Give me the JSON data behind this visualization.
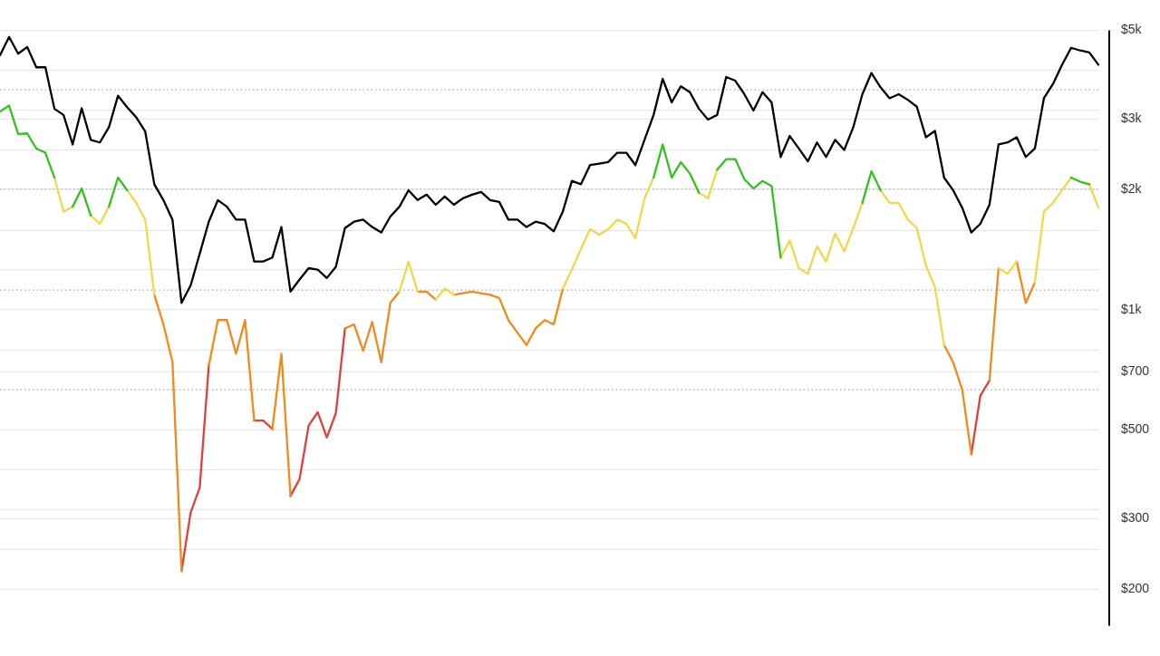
{
  "chart_data": {
    "type": "line",
    "categories": [
      null,
      null,
      null,
      null,
      null,
      null,
      null,
      null,
      null,
      null,
      null,
      null,
      null,
      null,
      null,
      null,
      null,
      null,
      null,
      null,
      null,
      null,
      null,
      null,
      null,
      null,
      null,
      null,
      null,
      null,
      null,
      null,
      null,
      null,
      null,
      null,
      null,
      null,
      null,
      null,
      null,
      null,
      null,
      null,
      null,
      null,
      null,
      null,
      null,
      null,
      null,
      null,
      null,
      null,
      null,
      null,
      null,
      null,
      null,
      null,
      null,
      null,
      null,
      null,
      null,
      null,
      null,
      null,
      null,
      null,
      null,
      null,
      null,
      null,
      null,
      null,
      null,
      null,
      null,
      null,
      null,
      null,
      null,
      null,
      null,
      null,
      null,
      null,
      null,
      null,
      null,
      null,
      null,
      null,
      null,
      null,
      null,
      null,
      null,
      null,
      null,
      null,
      null,
      null,
      null,
      null,
      null,
      null,
      null,
      null,
      null,
      null,
      null,
      null,
      null,
      null,
      null,
      null,
      null,
      null,
      null,
      null
    ],
    "series": [
      {
        "color": "#000000",
        "values": [
          4330,
          4810,
          4370,
          4540,
          4040,
          4040,
          3180,
          3070,
          2590,
          3190,
          2660,
          2620,
          2860,
          3430,
          3210,
          3030,
          2790,
          2060,
          1880,
          1680,
          1040,
          1150,
          1380,
          1660,
          1880,
          1810,
          1680,
          1680,
          1320,
          1320,
          1350,
          1610,
          1110,
          1190,
          1270,
          1260,
          1200,
          1280,
          1600,
          1660,
          1680,
          1610,
          1560,
          1710,
          1810,
          1990,
          1880,
          1940,
          1830,
          1920,
          1830,
          1900,
          1940,
          1970,
          1880,
          1860,
          1680,
          1680,
          1610,
          1660,
          1640,
          1570,
          1760,
          2100,
          2060,
          2300,
          2320,
          2340,
          2470,
          2470,
          2300,
          2660,
          3070,
          3780,
          3300,
          3620,
          3500,
          3180,
          2990,
          3070,
          3820,
          3740,
          3460,
          3150,
          3500,
          3300,
          2410,
          2720,
          2530,
          2350,
          2620,
          2410,
          2660,
          2510,
          2860,
          3460,
          3910,
          3600,
          3380,
          3460,
          3350,
          3220,
          2700,
          2800,
          2140,
          1990,
          1800,
          1560,
          1640,
          1830,
          2590,
          2620,
          2700,
          2410,
          2530,
          3380,
          3670,
          4100,
          4520,
          4450,
          4400,
          4100
        ]
      },
      {
        "color": "#33c11f",
        "values": [
          3130,
          3240,
          2750,
          2760,
          2530,
          2470,
          2140,
          null,
          1810,
          2010,
          1720,
          null,
          1810,
          2140,
          1990,
          null,
          null,
          null,
          null,
          null,
          null,
          null,
          null,
          null,
          null,
          null,
          null,
          null,
          null,
          null,
          null,
          null,
          null,
          null,
          null,
          null,
          null,
          null,
          null,
          null,
          null,
          null,
          null,
          null,
          null,
          null,
          null,
          null,
          null,
          null,
          null,
          null,
          null,
          null,
          null,
          null,
          null,
          null,
          null,
          null,
          null,
          null,
          null,
          null,
          null,
          null,
          null,
          null,
          null,
          null,
          null,
          null,
          2140,
          2590,
          2140,
          2340,
          2190,
          1960,
          null,
          2240,
          2380,
          2380,
          2120,
          2010,
          2100,
          2040,
          1350,
          null,
          null,
          null,
          null,
          null,
          null,
          null,
          null,
          1850,
          2220,
          1990,
          null,
          null,
          null,
          null,
          null,
          null,
          null,
          null,
          null,
          null,
          null,
          null,
          null,
          null,
          null,
          null,
          null,
          null,
          null,
          null,
          2140,
          2090,
          2060,
          null
        ]
      },
      {
        "color": "#f0d848",
        "values": [
          null,
          null,
          null,
          null,
          null,
          null,
          2140,
          1760,
          1810,
          null,
          1720,
          1640,
          1810,
          null,
          1990,
          1850,
          1680,
          1090,
          null,
          null,
          null,
          null,
          null,
          null,
          null,
          null,
          null,
          null,
          null,
          null,
          null,
          null,
          null,
          null,
          null,
          null,
          null,
          null,
          null,
          null,
          null,
          null,
          null,
          null,
          1110,
          1320,
          1110,
          null,
          1060,
          1130,
          1090,
          null,
          null,
          null,
          null,
          null,
          null,
          null,
          null,
          null,
          null,
          null,
          1130,
          1260,
          1420,
          1590,
          1540,
          1590,
          1680,
          1640,
          1510,
          1900,
          2140,
          null,
          null,
          null,
          null,
          1960,
          1900,
          2240,
          null,
          null,
          null,
          null,
          null,
          null,
          1350,
          1490,
          1270,
          1230,
          1440,
          1320,
          1550,
          1400,
          1600,
          1850,
          null,
          1990,
          1850,
          1850,
          1680,
          1600,
          1290,
          1140,
          816,
          null,
          null,
          null,
          null,
          null,
          1270,
          1230,
          1320,
          null,
          1170,
          1760,
          1850,
          1990,
          2140,
          null,
          2060,
          1800
        ]
      },
      {
        "color": "#f08a1c",
        "values": [
          null,
          null,
          null,
          null,
          null,
          null,
          null,
          null,
          null,
          null,
          null,
          null,
          null,
          null,
          null,
          null,
          null,
          1090,
          919,
          740,
          222,
          null,
          null,
          725,
          942,
          942,
          776,
          942,
          528,
          null,
          503,
          776,
          342,
          null,
          null,
          null,
          null,
          null,
          898,
          919,
          789,
          932,
          739,
          1040,
          1110,
          null,
          1110,
          1110,
          1060,
          null,
          1090,
          1100,
          1110,
          1100,
          1090,
          1070,
          942,
          876,
          816,
          898,
          942,
          919,
          1130,
          null,
          null,
          null,
          null,
          null,
          null,
          null,
          null,
          null,
          null,
          null,
          null,
          null,
          null,
          null,
          null,
          null,
          null,
          null,
          null,
          null,
          null,
          null,
          null,
          null,
          null,
          null,
          null,
          null,
          null,
          null,
          null,
          null,
          null,
          null,
          null,
          null,
          null,
          null,
          null,
          null,
          816,
          739,
          631,
          435,
          null,
          665,
          1270,
          null,
          1320,
          1040,
          1170,
          null,
          null,
          null,
          null,
          null,
          null,
          null
        ]
      },
      {
        "color": "#e0403c",
        "values": [
          null,
          null,
          null,
          null,
          null,
          null,
          null,
          null,
          null,
          null,
          null,
          null,
          null,
          null,
          null,
          null,
          null,
          null,
          null,
          null,
          222,
          311,
          359,
          725,
          null,
          null,
          null,
          null,
          528,
          528,
          503,
          null,
          342,
          377,
          513,
          554,
          479,
          551,
          898,
          null,
          null,
          null,
          null,
          null,
          null,
          null,
          null,
          null,
          null,
          null,
          null,
          null,
          null,
          null,
          null,
          null,
          null,
          null,
          null,
          null,
          null,
          null,
          null,
          null,
          null,
          null,
          null,
          null,
          null,
          null,
          null,
          null,
          null,
          null,
          null,
          null,
          null,
          null,
          null,
          null,
          null,
          null,
          null,
          null,
          null,
          null,
          null,
          null,
          null,
          null,
          null,
          null,
          null,
          null,
          null,
          null,
          null,
          null,
          null,
          null,
          null,
          null,
          null,
          null,
          null,
          null,
          null,
          435,
          610,
          665,
          null,
          null,
          null,
          null,
          null,
          null,
          null,
          null,
          null,
          null,
          null,
          null
        ]
      }
    ],
    "log": true,
    "ylim": [
      162,
      5000
    ],
    "yticks": [
      {
        "value": 200,
        "label": "$200"
      },
      {
        "value": 251,
        "label": null
      },
      {
        "value": 300,
        "label": "$300"
      },
      {
        "value": 316,
        "label": null
      },
      {
        "value": 398,
        "label": null
      },
      {
        "value": 500,
        "label": "$500"
      },
      {
        "value": 700,
        "label": "$700"
      },
      {
        "value": 794,
        "label": null
      },
      {
        "value": 1000,
        "label": "$1k"
      },
      {
        "value": 1260,
        "label": null
      },
      {
        "value": 1580,
        "label": null
      },
      {
        "value": 2000,
        "label": "$2k"
      },
      {
        "value": 2510,
        "label": null
      },
      {
        "value": 3000,
        "label": "$3k"
      },
      {
        "value": 3160,
        "label": null
      },
      {
        "value": 3980,
        "label": null
      },
      {
        "value": 5000,
        "label": "$5k"
      }
    ],
    "grid": "y",
    "tick_labels": "y",
    "ref_lines": [
      {
        "axis": "y",
        "value": 3550,
        "line_style": "dotted",
        "color": "#a8a8a8"
      },
      {
        "axis": "y",
        "value": 2000,
        "line_style": "dotted",
        "color": "#a8a8a8"
      },
      {
        "axis": "y",
        "value": 1120,
        "line_style": "dotted",
        "color": "#a8a8a8"
      },
      {
        "axis": "y",
        "value": 631,
        "line_style": "dotted",
        "color": "#a8a8a8"
      }
    ]
  }
}
